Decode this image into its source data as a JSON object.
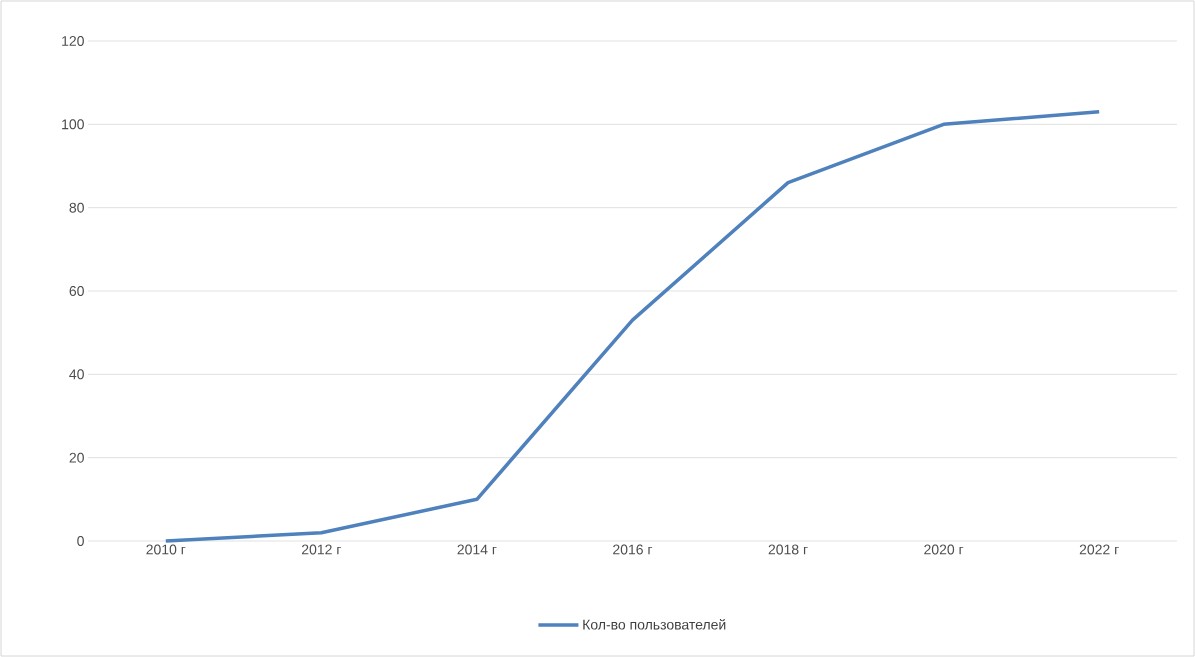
{
  "chart_data": {
    "type": "line",
    "categories": [
      "2010 г",
      "2012 г",
      "2014 г",
      "2016 г",
      "2018 г",
      "2020 г",
      "2022 г"
    ],
    "series": [
      {
        "name": "Кол-во пользователей",
        "color": "#4f81bd",
        "values": [
          0,
          2,
          10,
          53,
          86,
          100,
          103
        ]
      }
    ],
    "ylim": [
      0,
      120
    ],
    "yticks": [
      0,
      20,
      40,
      60,
      80,
      100,
      120
    ],
    "grid": "y",
    "legend": "bottom",
    "marker": "none",
    "line_style": "solid"
  }
}
